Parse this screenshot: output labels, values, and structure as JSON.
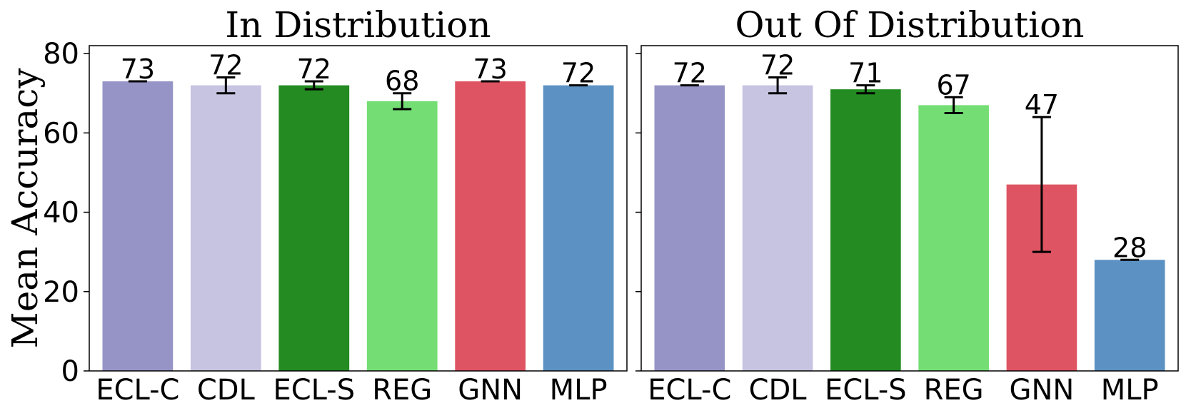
{
  "chart_data": [
    {
      "type": "bar",
      "title": "In Distribution",
      "ylabel": "Mean Accuracy",
      "xlabel": "",
      "ylim": [
        0,
        82
      ],
      "yticks": [
        0,
        20,
        40,
        60,
        80
      ],
      "categories": [
        "ECL-C",
        "CDL",
        "ECL-S",
        "REG",
        "GNN",
        "MLP"
      ],
      "values": [
        73,
        72,
        72,
        68,
        73,
        72
      ],
      "errors": [
        0,
        2,
        1,
        2,
        0,
        0
      ],
      "value_labels": [
        "73",
        "72",
        "72",
        "68",
        "73",
        "72"
      ],
      "colors": [
        "#9694c6",
        "#c6c4e1",
        "#238b22",
        "#74de74",
        "#de5462",
        "#5c92c3"
      ],
      "grid": false
    },
    {
      "type": "bar",
      "title": "Out Of Distribution",
      "ylabel": "",
      "xlabel": "",
      "ylim": [
        0,
        82
      ],
      "yticks": [
        0,
        20,
        40,
        60,
        80
      ],
      "categories": [
        "ECL-C",
        "CDL",
        "ECL-S",
        "REG",
        "GNN",
        "MLP"
      ],
      "values": [
        72,
        72,
        71,
        67,
        47,
        28
      ],
      "errors": [
        0,
        2,
        1,
        2,
        17,
        0
      ],
      "value_labels": [
        "72",
        "72",
        "71",
        "67",
        "47",
        "28"
      ],
      "colors": [
        "#9694c6",
        "#c6c4e1",
        "#238b22",
        "#74de74",
        "#de5462",
        "#5c92c3"
      ],
      "grid": false
    }
  ]
}
